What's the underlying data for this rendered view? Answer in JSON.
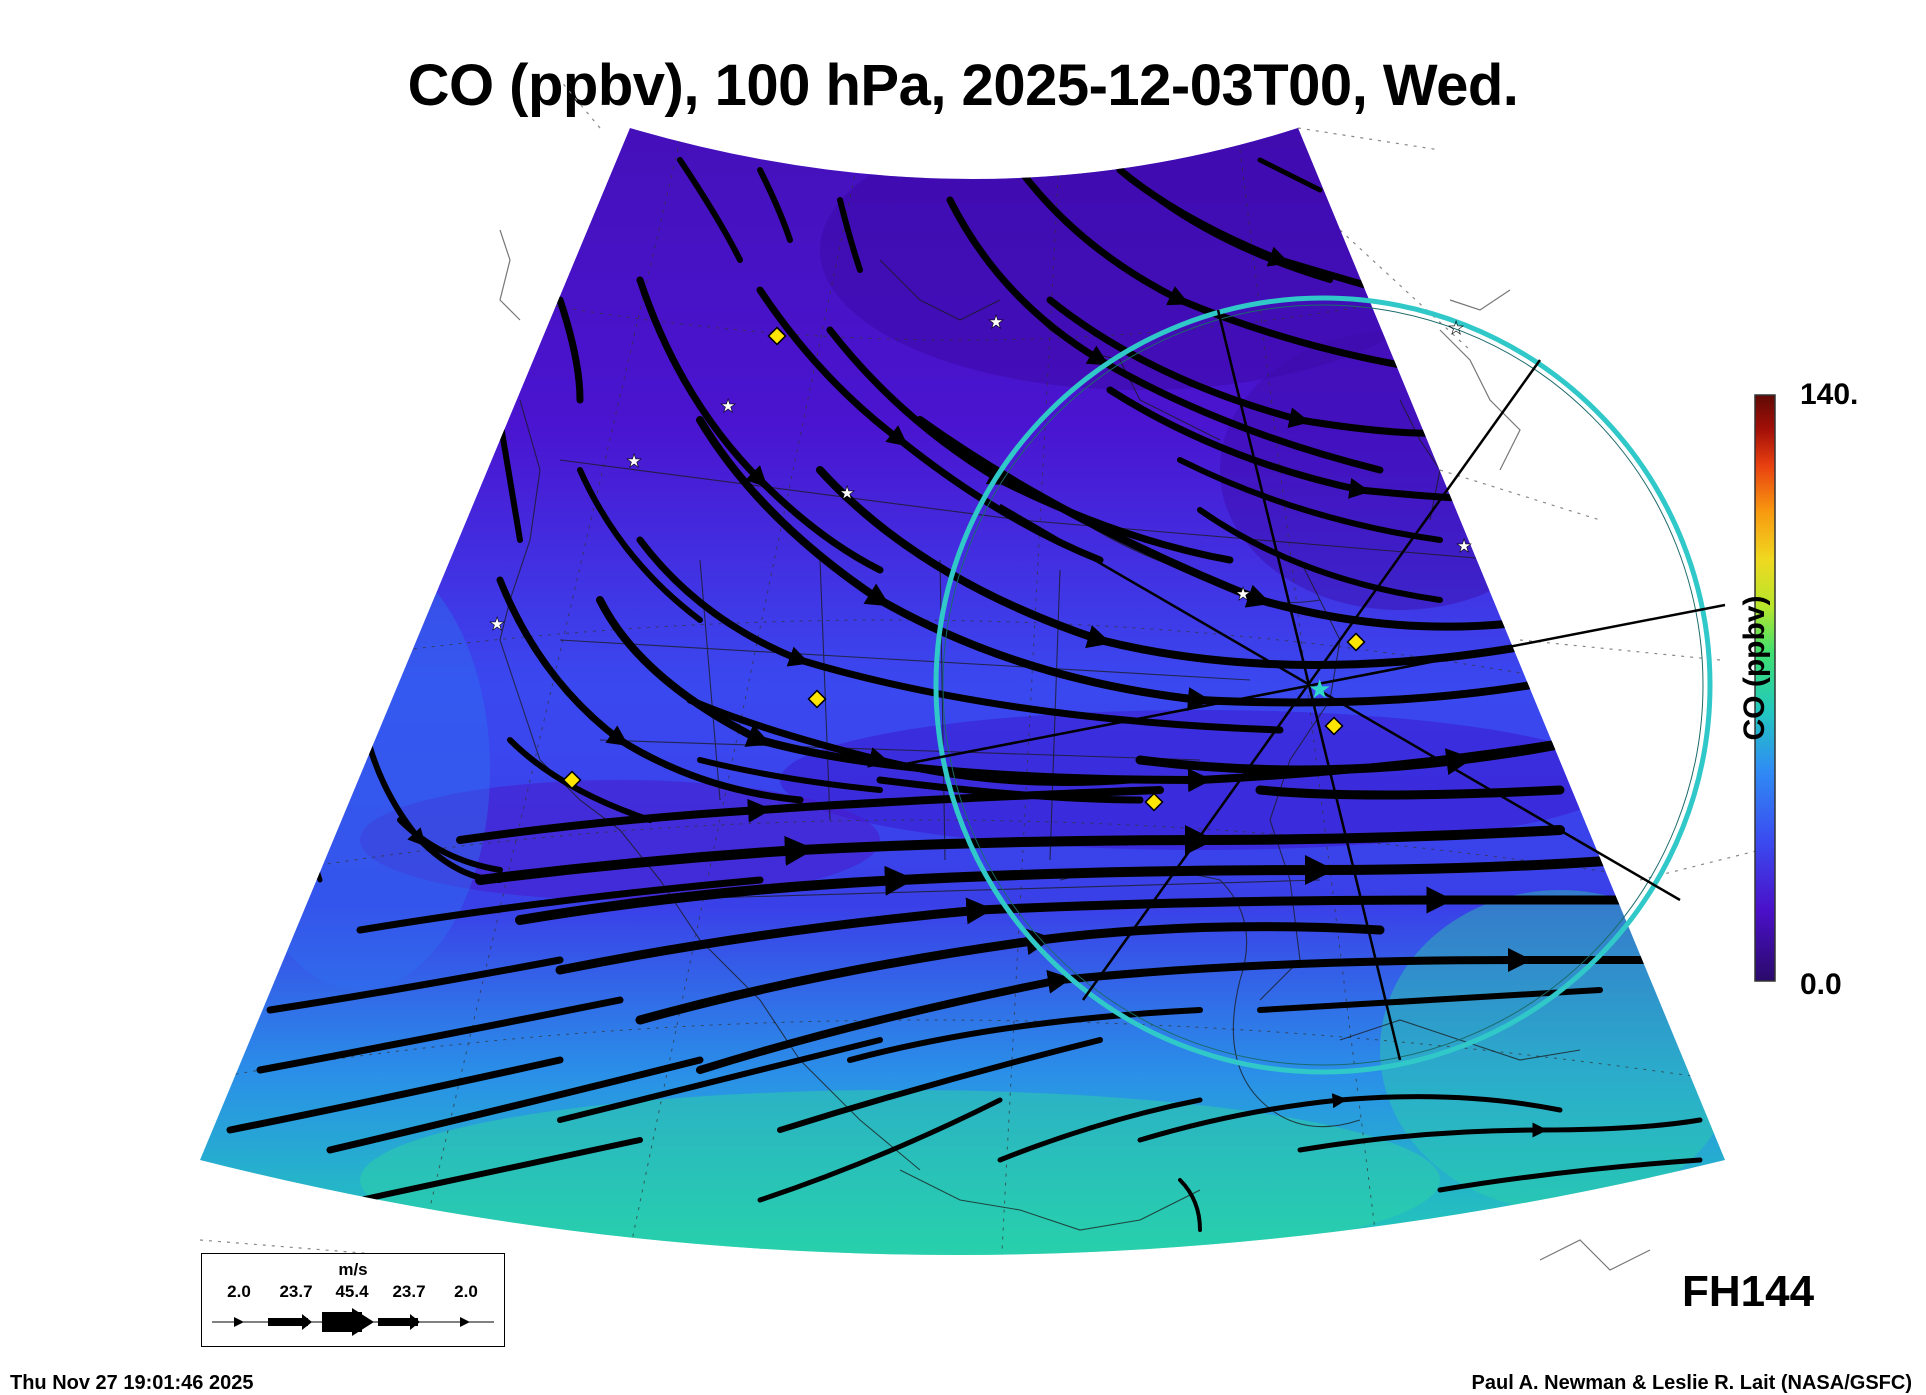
{
  "title": "CO (ppbv), 100 hPa, 2025-12-03T00, Wed.",
  "colorbar": {
    "max_label": "140.",
    "min_label": "0.0",
    "label": "CO (ppbv)",
    "colors": [
      "#2a0a6a",
      "#4a10c8",
      "#3a4cf0",
      "#2f8cf4",
      "#22c8c0",
      "#3ee070",
      "#b8e62a",
      "#f0d820",
      "#f89a10",
      "#e84010",
      "#a41008",
      "#600a06"
    ]
  },
  "forecast_hour": "FH144",
  "legend": {
    "units": "m/s",
    "values": [
      "2.0",
      "23.7",
      "45.4",
      "23.7",
      "2.0"
    ]
  },
  "footer": {
    "timestamp": "Thu Nov 27 19:01:46 2025",
    "credit": "Paul A. Newman & Leslie R. Lait (NASA/GSFC)"
  },
  "field_colors": {
    "north": "#4a12c8",
    "mid": "#3c3cf0",
    "south": "#2ad8a8"
  },
  "overlay_colors": {
    "circle": "#30c8c8",
    "markers": "#ffe600",
    "stars": "#ffffff"
  }
}
